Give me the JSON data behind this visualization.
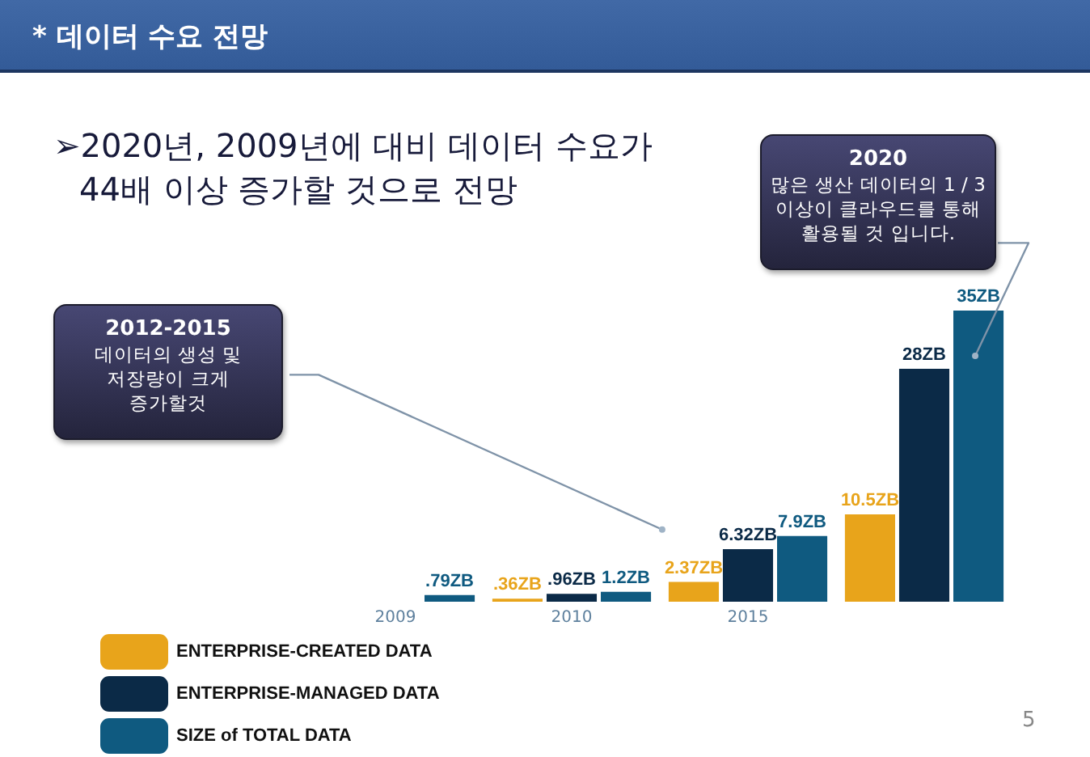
{
  "chart_data": {
    "type": "bar",
    "title": "* 데이터 수요 전망",
    "subtitle": "➢2020년, 2009년에 대비 데이터 수요가\n44배 이상 증가할 것으로 전망",
    "categories": [
      "2009",
      "2010",
      "2015",
      null
    ],
    "series": [
      {
        "name": "ENTERPRISE-CREATED DATA",
        "color": "#e8a41b",
        "values": [
          null,
          0.36,
          2.37,
          10.5
        ],
        "value_labels": [
          null,
          ".36ZB",
          "2.37ZB",
          "10.5ZB"
        ]
      },
      {
        "name": "ENTERPRISE-MANAGED DATA",
        "color": "#0b2a47",
        "values": [
          null,
          0.96,
          6.32,
          28
        ],
        "value_labels": [
          null,
          ".96ZB",
          "6.32ZB",
          "28ZB"
        ]
      },
      {
        "name": "SIZE of TOTAL DATA",
        "color": "#0f5a80",
        "values": [
          0.79,
          1.2,
          7.9,
          35
        ],
        "value_labels": [
          ".79ZB",
          "1.2ZB",
          "7.9ZB",
          "35ZB"
        ]
      }
    ],
    "legend": "bottom left",
    "annotations": [
      "2012-2015\n데이터의 생성 및\n저장량이 크게\n증가할것",
      "2020\n많은 생산 데이터의 1 / 3\n이상이 클라우드를 통해\n활용될 것 입니다.",
      "5"
    ]
  }
}
